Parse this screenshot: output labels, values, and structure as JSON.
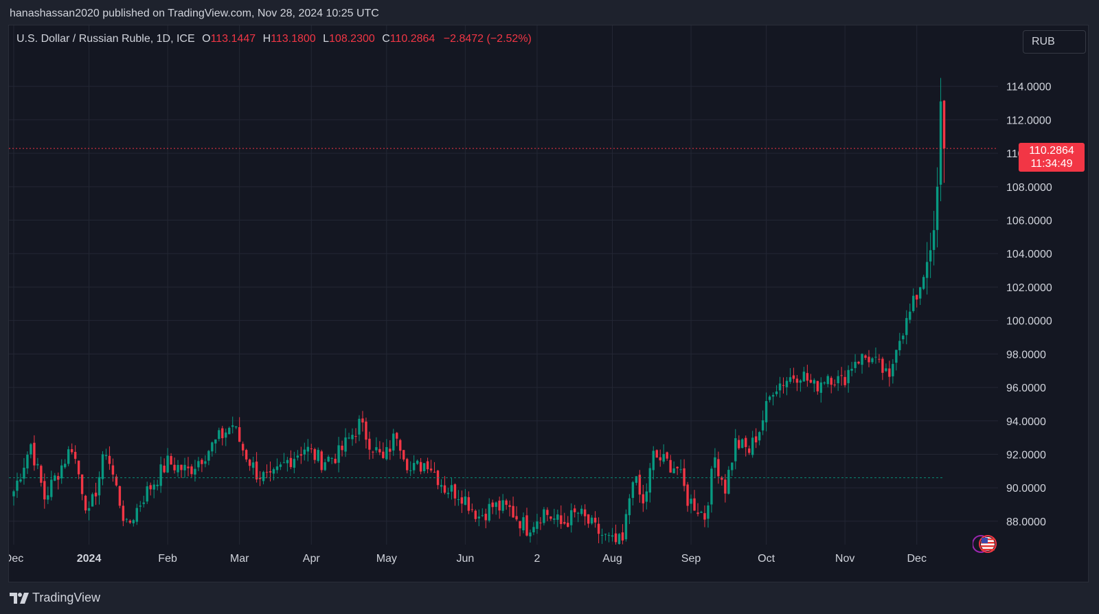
{
  "header": {
    "published": "hanashassan2020 published on TradingView.com, Nov 28, 2024 10:25 UTC"
  },
  "legend": {
    "symbol": "U.S. Dollar / Russian Ruble, 1D, ICE",
    "open_label": "O",
    "open": "113.1447",
    "high_label": "H",
    "high": "113.1800",
    "low_label": "L",
    "low": "108.2300",
    "close_label": "C",
    "close": "110.2864",
    "change": "−2.8472 (−2.52%)"
  },
  "currency_button": "RUB",
  "last_price_tag": {
    "price": "110.2864",
    "countdown": "11:34:49"
  },
  "brand": {
    "name": "TradingView"
  },
  "colors": {
    "up": "#089981",
    "down": "#f23645",
    "background": "#141722",
    "grid": "#232734",
    "text": "#d1d4dc"
  },
  "chart_data": {
    "type": "candlestick",
    "ylim": [
      86.6,
      116.0
    ],
    "y_ticks": [
      "114.0000",
      "112.0000",
      "110.0000",
      "108.0000",
      "106.0000",
      "104.0000",
      "102.0000",
      "100.0000",
      "98.0000",
      "96.0000",
      "94.0000",
      "92.0000",
      "90.0000",
      "88.0000"
    ],
    "y_tick_values": [
      114,
      112,
      110,
      108,
      106,
      104,
      102,
      100,
      98,
      96,
      94,
      92,
      90,
      88
    ],
    "x_ticks": [
      {
        "label": "Dec",
        "index": 0,
        "bold": false
      },
      {
        "label": "2024",
        "index": 22,
        "bold": true
      },
      {
        "label": "Feb",
        "index": 45,
        "bold": false
      },
      {
        "label": "Mar",
        "index": 66,
        "bold": false
      },
      {
        "label": "Apr",
        "index": 87,
        "bold": false
      },
      {
        "label": "May",
        "index": 109,
        "bold": false
      },
      {
        "label": "Jun",
        "index": 132,
        "bold": false
      },
      {
        "label": "2",
        "index": 153,
        "bold": false
      },
      {
        "label": "Aug",
        "index": 175,
        "bold": false
      },
      {
        "label": "Sep",
        "index": 198,
        "bold": false
      },
      {
        "label": "Oct",
        "index": 220,
        "bold": false
      },
      {
        "label": "Nov",
        "index": 243,
        "bold": false
      },
      {
        "label": "Dec",
        "index": 264,
        "bold": false
      }
    ],
    "last_price": 110.2864,
    "ref_price": 90.6,
    "anchors": [
      [
        0,
        89.8
      ],
      [
        5,
        92.6
      ],
      [
        9,
        89.4
      ],
      [
        17,
        92.5
      ],
      [
        22,
        88.3
      ],
      [
        27,
        92.3
      ],
      [
        33,
        87.6
      ],
      [
        38,
        89.5
      ],
      [
        45,
        91.5
      ],
      [
        51,
        91.0
      ],
      [
        57,
        92.3
      ],
      [
        64,
        93.8
      ],
      [
        67,
        92.3
      ],
      [
        71,
        90.9
      ],
      [
        75,
        90.4
      ],
      [
        80,
        91.6
      ],
      [
        85,
        92.4
      ],
      [
        90,
        91.6
      ],
      [
        95,
        92.0
      ],
      [
        101,
        93.8
      ],
      [
        104,
        92.8
      ],
      [
        108,
        91.6
      ],
      [
        112,
        93.3
      ],
      [
        116,
        91.0
      ],
      [
        121,
        91.6
      ],
      [
        126,
        90.0
      ],
      [
        131,
        89.6
      ],
      [
        136,
        88.3
      ],
      [
        140,
        88.9
      ],
      [
        145,
        88.7
      ],
      [
        150,
        87.6
      ],
      [
        155,
        88.6
      ],
      [
        160,
        87.8
      ],
      [
        165,
        88.5
      ],
      [
        170,
        87.5
      ],
      [
        175,
        86.7
      ],
      [
        178,
        86.7
      ],
      [
        181,
        90.8
      ],
      [
        184,
        88.9
      ],
      [
        187,
        91.9
      ],
      [
        190,
        91.6
      ],
      [
        194,
        91.2
      ],
      [
        197,
        89.3
      ],
      [
        199,
        89.0
      ],
      [
        202,
        88.3
      ],
      [
        205,
        91.8
      ],
      [
        208,
        90.0
      ],
      [
        211,
        92.7
      ],
      [
        215,
        92.2
      ],
      [
        218,
        93.5
      ],
      [
        222,
        96.0
      ],
      [
        226,
        96.5
      ],
      [
        230,
        96.9
      ],
      [
        234,
        96.0
      ],
      [
        238,
        96.8
      ],
      [
        242,
        96.3
      ],
      [
        246,
        97.7
      ],
      [
        250,
        97.8
      ],
      [
        254,
        97.0
      ],
      [
        256,
        96.3
      ],
      [
        258,
        98.7
      ],
      [
        261,
        99.9
      ],
      [
        264,
        101.5
      ],
      [
        266,
        102.8
      ],
      [
        268,
        104.2
      ],
      [
        269,
        105.4
      ],
      [
        270,
        108.0
      ],
      [
        271,
        113.1
      ],
      [
        272,
        110.28
      ]
    ]
  }
}
